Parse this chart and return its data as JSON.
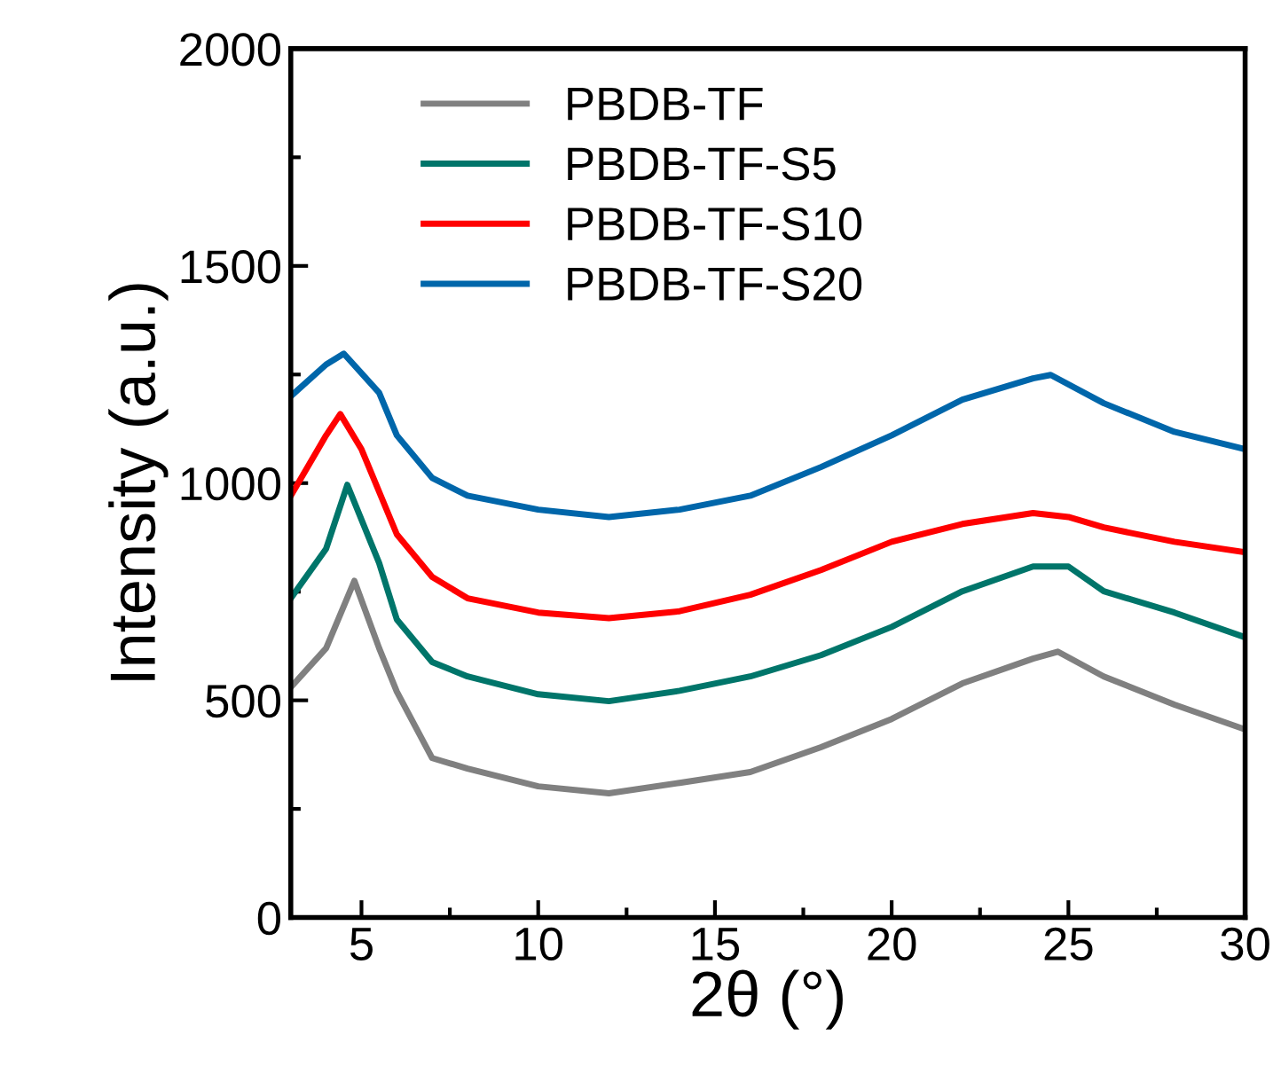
{
  "chart_data": {
    "type": "line",
    "xlabel": "2θ (°)",
    "ylabel": "Intensity (a.u.)",
    "xlim": [
      3,
      30
    ],
    "xticks": [
      5,
      10,
      15,
      20,
      25,
      30
    ],
    "ylim": [
      0,
      2000
    ],
    "yticks": [
      0,
      500,
      1000,
      1500,
      2000
    ],
    "grid": false,
    "legend": "top left",
    "line_style": "solid",
    "marker": "none",
    "series": [
      {
        "name": "PBDB-TF",
        "color": "#808080",
        "x": [
          3,
          4,
          4.8,
          5.5,
          6,
          7,
          8,
          10,
          12,
          14,
          16,
          18,
          20,
          22,
          24,
          24.7,
          26,
          28,
          30
        ],
        "values": [
          530,
          620,
          775,
          620,
          520,
          367,
          343,
          302,
          286,
          310,
          335,
          392,
          457,
          539,
          596,
          612,
          555,
          490,
          433
        ]
      },
      {
        "name": "PBDB-TF-S5",
        "color": "#00756a",
        "x": [
          3,
          4,
          4.6,
          5.5,
          6,
          7,
          8,
          10,
          12,
          14,
          16,
          18,
          20,
          22,
          24,
          25,
          26,
          28,
          30
        ],
        "values": [
          735,
          849,
          996,
          816,
          686,
          588,
          555,
          514,
          498,
          522,
          555,
          604,
          669,
          751,
          808,
          808,
          751,
          702,
          645
        ]
      },
      {
        "name": "PBDB-TF-S10",
        "color": "#ff0000",
        "x": [
          3,
          4,
          4.4,
          5,
          6,
          7,
          8,
          10,
          12,
          14,
          16,
          18,
          20,
          22,
          24,
          25,
          26,
          28,
          30
        ],
        "values": [
          971,
          1110,
          1159,
          1078,
          882,
          784,
          735,
          702,
          689,
          705,
          743,
          800,
          865,
          906,
          931,
          922,
          898,
          865,
          841
        ]
      },
      {
        "name": "PBDB-TF-S20",
        "color": "#0066aa",
        "x": [
          3,
          4,
          4.5,
          5.5,
          6,
          7,
          8,
          10,
          12,
          14,
          16,
          18,
          20,
          22,
          24,
          24.5,
          26,
          28,
          30
        ],
        "values": [
          1200,
          1273,
          1298,
          1208,
          1110,
          1012,
          971,
          939,
          922,
          939,
          971,
          1037,
          1110,
          1192,
          1241,
          1249,
          1184,
          1118,
          1078
        ]
      }
    ]
  }
}
